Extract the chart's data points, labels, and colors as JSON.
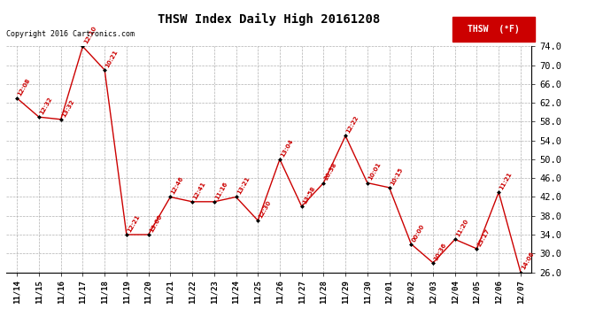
{
  "title": "THSW Index Daily High 20161208",
  "legend_label": "THSW  (°F)",
  "copyright": "Copyright 2016 Cartronics.com",
  "background_color": "#ffffff",
  "plot_bg_color": "#ffffff",
  "grid_color": "#b0b0b0",
  "line_color": "#cc0000",
  "marker_color": "#000000",
  "label_color": "#cc0000",
  "legend_bg": "#cc0000",
  "legend_text_color": "#ffffff",
  "ylim": [
    26.0,
    74.0
  ],
  "yticks": [
    26.0,
    30.0,
    34.0,
    38.0,
    42.0,
    46.0,
    50.0,
    54.0,
    58.0,
    62.0,
    66.0,
    70.0,
    74.0
  ],
  "dates": [
    "11/14",
    "11/15",
    "11/16",
    "11/17",
    "11/18",
    "11/19",
    "11/20",
    "11/21",
    "11/22",
    "11/23",
    "11/24",
    "11/25",
    "11/26",
    "11/27",
    "11/28",
    "11/29",
    "11/30",
    "12/01",
    "12/02",
    "12/03",
    "12/04",
    "12/05",
    "12/06",
    "12/07"
  ],
  "values": [
    63.0,
    59.0,
    58.5,
    74.0,
    69.0,
    34.0,
    34.0,
    42.0,
    41.0,
    41.0,
    42.0,
    37.0,
    50.0,
    40.0,
    45.0,
    55.0,
    45.0,
    44.0,
    32.0,
    28.0,
    33.0,
    31.0,
    43.0,
    26.0
  ],
  "time_labels": [
    "12:08",
    "12:32",
    "13:32",
    "12:10",
    "10:21",
    "12:21",
    "13:00",
    "12:46",
    "12:41",
    "11:16",
    "13:21",
    "12:30",
    "13:04",
    "13:58",
    "20:38",
    "12:22",
    "10:01",
    "10:15",
    "00:00",
    "10:36",
    "11:20",
    "23:17",
    "11:21",
    "14:06"
  ]
}
